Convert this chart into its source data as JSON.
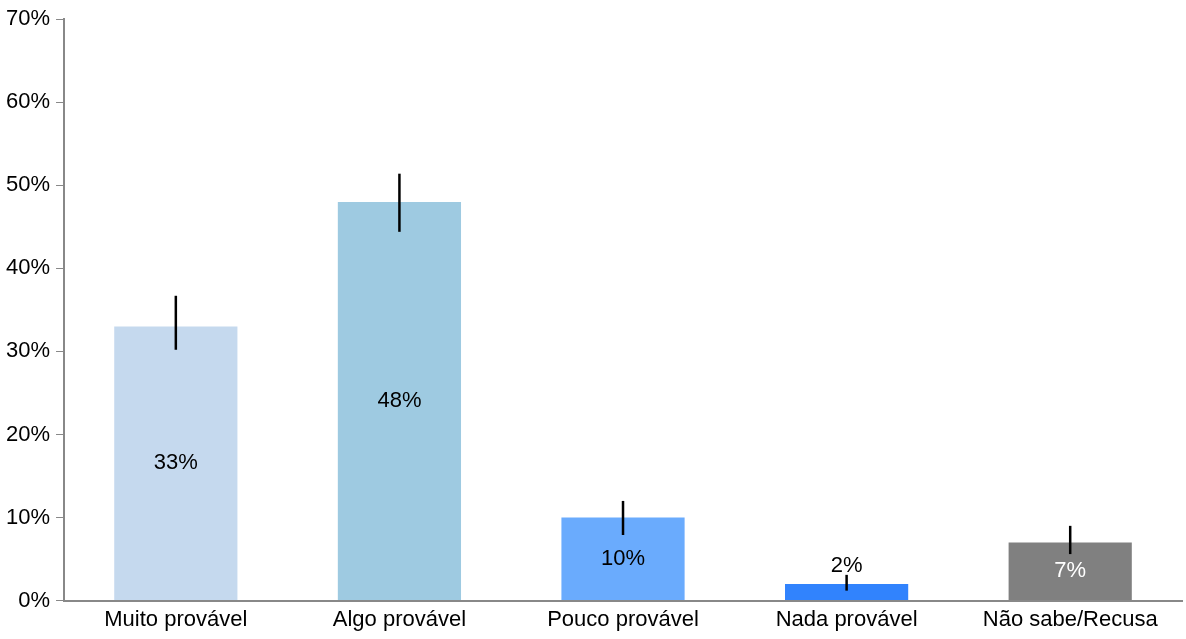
{
  "chart_data": {
    "type": "bar",
    "categories": [
      "Muito provável",
      "Algo provável",
      "Pouco provável",
      "Nada provável",
      "Não sabe/Recusa"
    ],
    "values": [
      33,
      48,
      10,
      2,
      7
    ],
    "colors": [
      "#c5d9ee",
      "#9ecae1",
      "#6aabfd",
      "#3183fd",
      "#808080"
    ],
    "errors": [
      [
        30.2,
        36.7
      ],
      [
        44.4,
        51.4
      ],
      [
        7.9,
        12.0
      ],
      [
        1.2,
        3.1
      ],
      [
        5.6,
        9.0
      ]
    ],
    "value_labels": [
      "33%",
      "48%",
      "10%",
      "2%",
      "7%"
    ],
    "ylim": [
      0,
      70
    ],
    "yticks": [
      {
        "value": 0,
        "label": "0%"
      },
      {
        "value": 10,
        "label": "10%"
      },
      {
        "value": 20,
        "label": "20%"
      },
      {
        "value": 30,
        "label": "30%"
      },
      {
        "value": 40,
        "label": "40%"
      },
      {
        "value": 50,
        "label": "50%"
      },
      {
        "value": 60,
        "label": "60%"
      },
      {
        "value": 70,
        "label": "70%"
      }
    ],
    "grid": false,
    "legend": false
  }
}
